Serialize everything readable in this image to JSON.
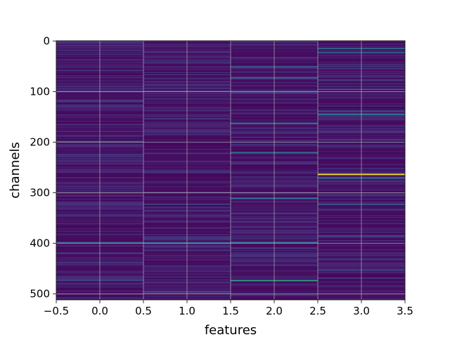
{
  "chart_data": {
    "type": "heatmap",
    "title": "",
    "xlabel": "features",
    "ylabel": "channels",
    "xlim": [
      -0.5,
      3.5
    ],
    "ylim": [
      511.5,
      -0.5
    ],
    "y_inverted": true,
    "grid": true,
    "colormap": "viridis",
    "x_ticks": [
      -0.5,
      0.0,
      0.5,
      1.0,
      1.5,
      2.0,
      2.5,
      3.0,
      3.5
    ],
    "x_tick_labels": [
      "−0.5",
      "0.0",
      "0.5",
      "1.0",
      "1.5",
      "2.0",
      "2.5",
      "3.0",
      "3.5"
    ],
    "y_ticks": [
      0,
      100,
      200,
      300,
      400,
      500
    ],
    "y_tick_labels": [
      "0",
      "100",
      "200",
      "300",
      "400",
      "500"
    ],
    "n_features": 4,
    "n_channels": 512,
    "background_level": 0.04,
    "highlights": [
      {
        "feature": 0,
        "channel": 58,
        "value": 0.22
      },
      {
        "feature": 0,
        "channel": 94,
        "value": 0.18
      },
      {
        "feature": 0,
        "channel": 128,
        "value": 0.16
      },
      {
        "feature": 0,
        "channel": 198,
        "value": 0.35
      },
      {
        "feature": 0,
        "channel": 238,
        "value": 0.15
      },
      {
        "feature": 0,
        "channel": 305,
        "value": 0.16
      },
      {
        "feature": 0,
        "channel": 345,
        "value": 0.15
      },
      {
        "feature": 0,
        "channel": 398,
        "value": 0.4
      },
      {
        "feature": 0,
        "channel": 472,
        "value": 0.3
      },
      {
        "feature": 1,
        "channel": 153,
        "value": 0.2
      },
      {
        "feature": 1,
        "channel": 322,
        "value": 0.28
      },
      {
        "feature": 1,
        "channel": 398,
        "value": 0.42
      },
      {
        "feature": 1,
        "channel": 455,
        "value": 0.15
      },
      {
        "feature": 1,
        "channel": 495,
        "value": 0.32
      },
      {
        "feature": 2,
        "channel": 50,
        "value": 0.35
      },
      {
        "feature": 2,
        "channel": 72,
        "value": 0.45
      },
      {
        "feature": 2,
        "channel": 102,
        "value": 0.25
      },
      {
        "feature": 2,
        "channel": 162,
        "value": 0.62
      },
      {
        "feature": 2,
        "channel": 220,
        "value": 0.5
      },
      {
        "feature": 2,
        "channel": 242,
        "value": 0.22
      },
      {
        "feature": 2,
        "channel": 310,
        "value": 0.55
      },
      {
        "feature": 2,
        "channel": 340,
        "value": 0.2
      },
      {
        "feature": 2,
        "channel": 398,
        "value": 0.5
      },
      {
        "feature": 2,
        "channel": 473,
        "value": 0.7
      },
      {
        "feature": 3,
        "channel": 14,
        "value": 0.5
      },
      {
        "feature": 3,
        "channel": 22,
        "value": 0.42
      },
      {
        "feature": 3,
        "channel": 95,
        "value": 0.48
      },
      {
        "feature": 3,
        "channel": 138,
        "value": 0.4
      },
      {
        "feature": 3,
        "channel": 145,
        "value": 0.55
      },
      {
        "feature": 3,
        "channel": 178,
        "value": 0.25
      },
      {
        "feature": 3,
        "channel": 263,
        "value": 1.0
      },
      {
        "feature": 3,
        "channel": 270,
        "value": 0.6
      },
      {
        "feature": 3,
        "channel": 322,
        "value": 0.45
      },
      {
        "feature": 3,
        "channel": 385,
        "value": 0.3
      },
      {
        "feature": 3,
        "channel": 452,
        "value": 0.35
      },
      {
        "feature": 3,
        "channel": 468,
        "value": 0.22
      }
    ]
  }
}
